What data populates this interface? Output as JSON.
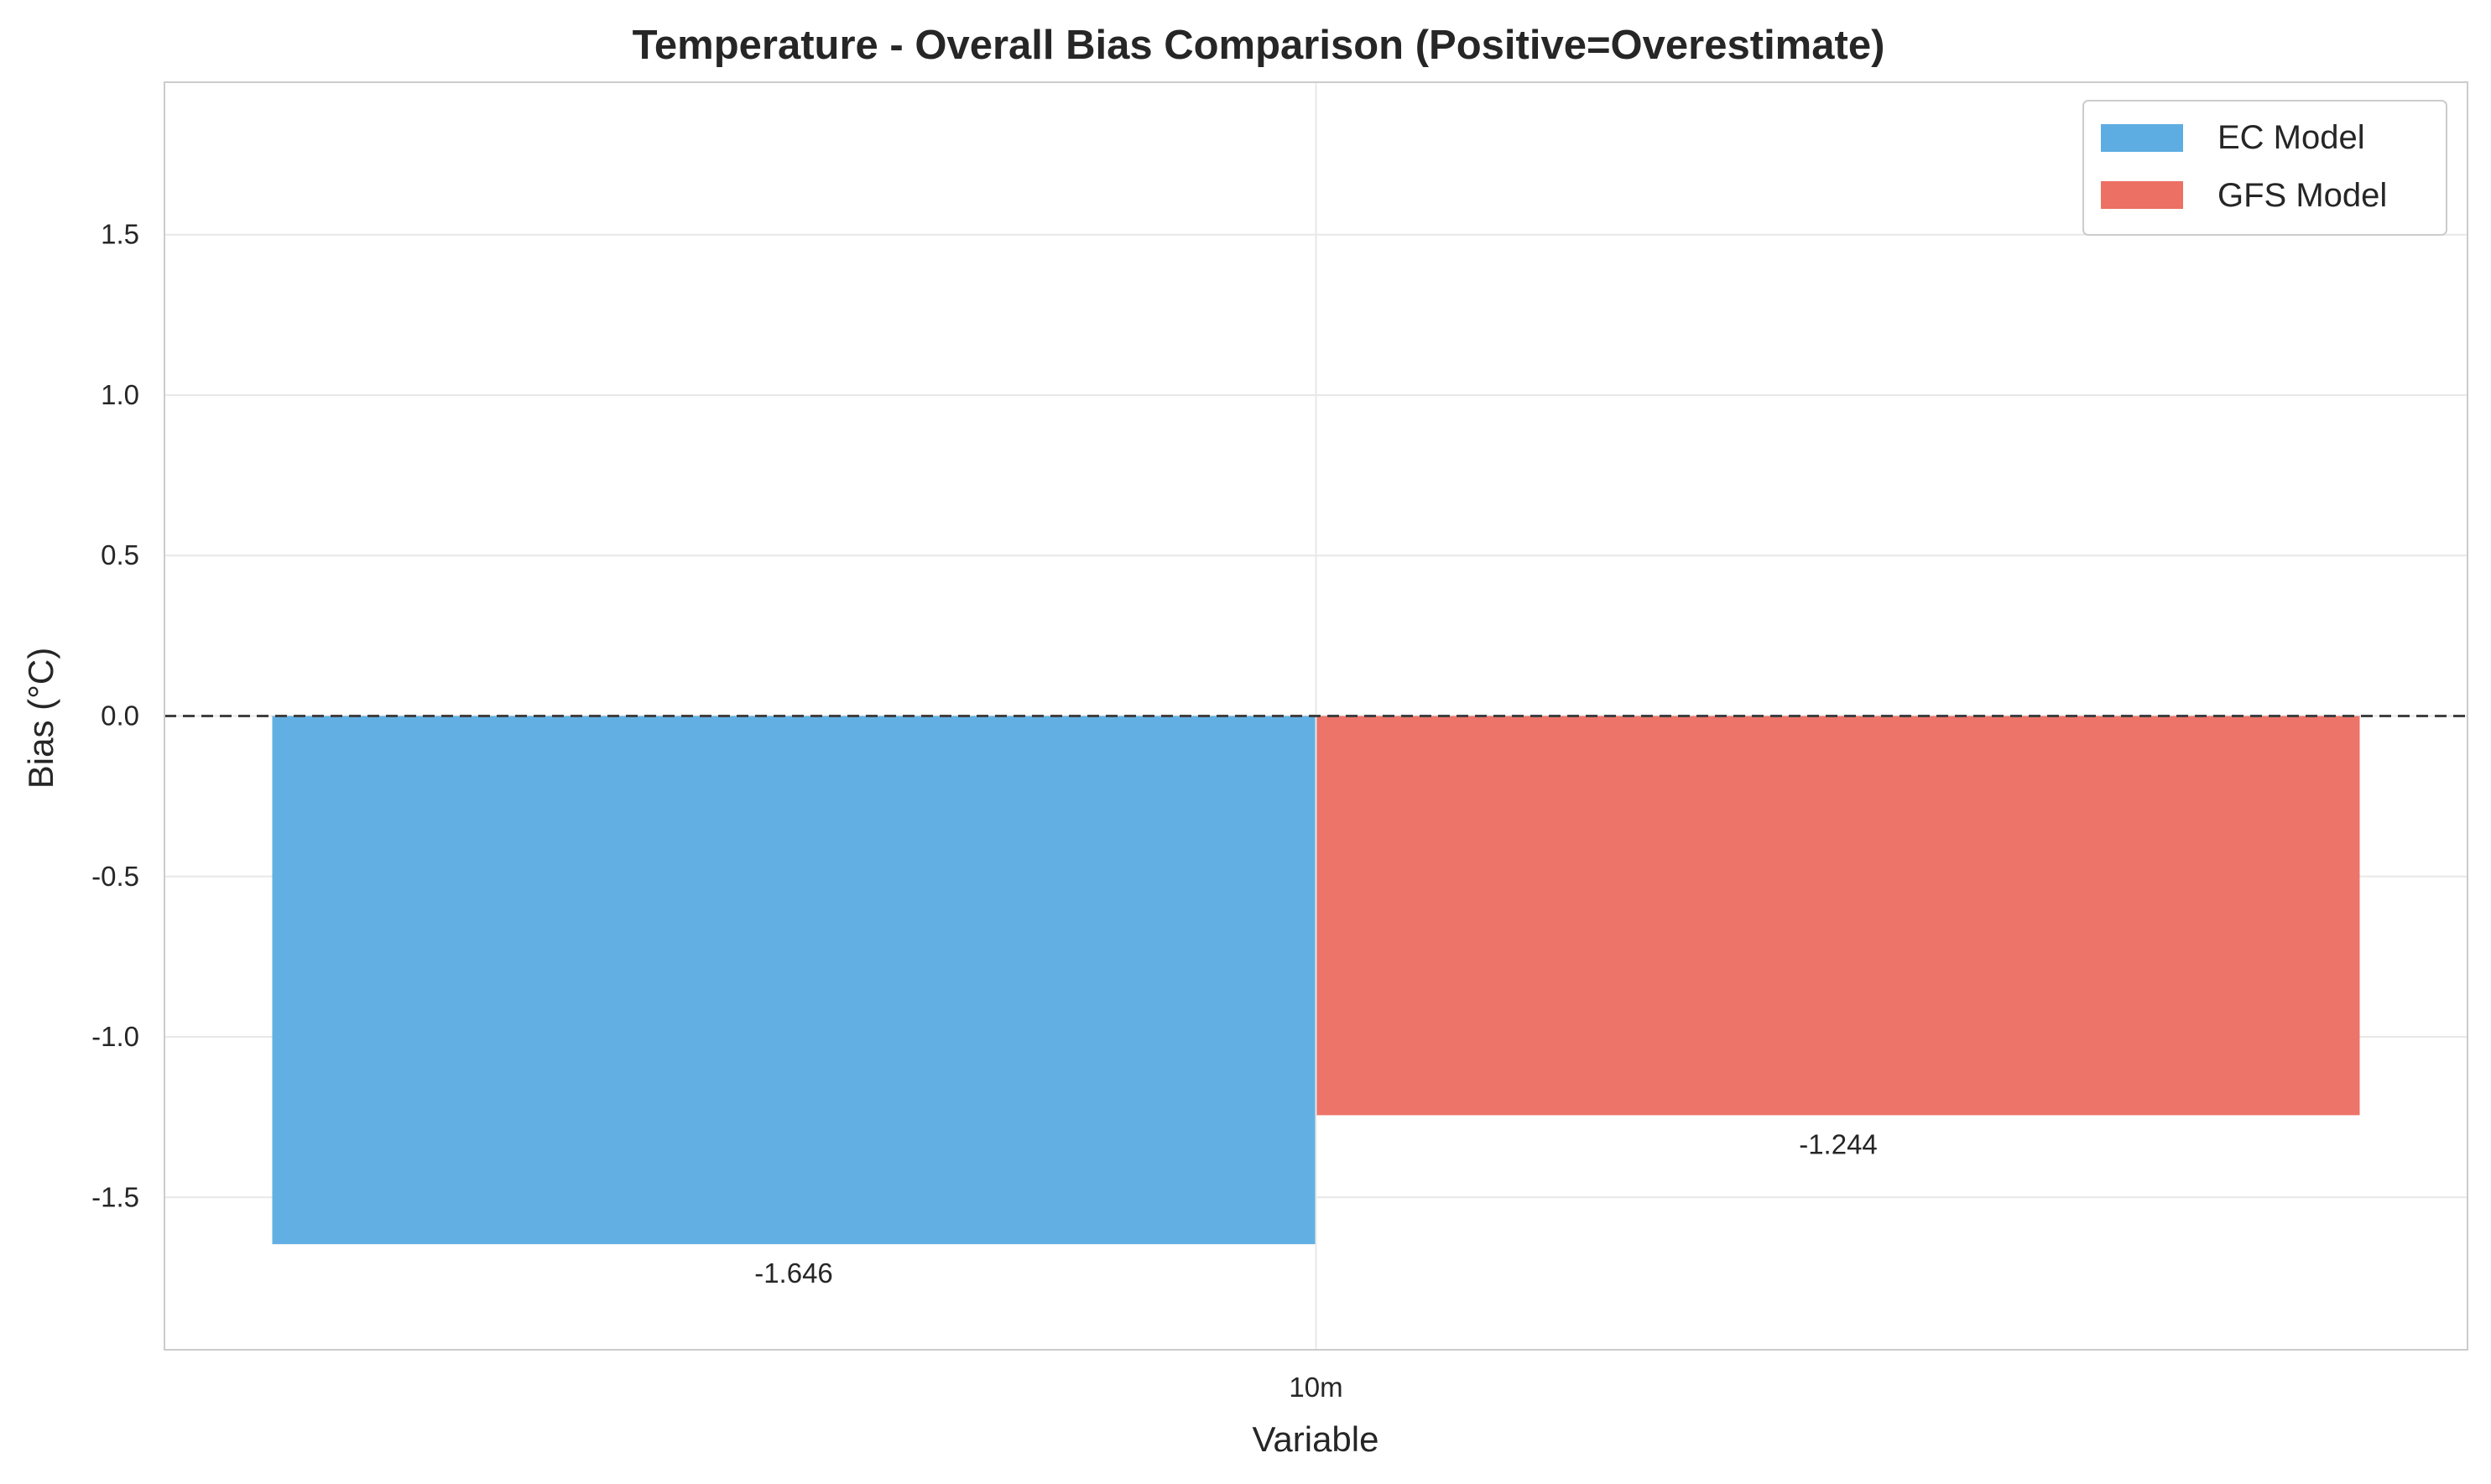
{
  "chart_data": {
    "type": "bar",
    "title": "Temperature - Overall Bias Comparison (Positive=Overestimate)",
    "xlabel": "Variable",
    "ylabel": "Bias (°C)",
    "categories": [
      "10m"
    ],
    "series": [
      {
        "name": "EC Model",
        "values": [
          -1.646
        ],
        "color": "#5DADE2",
        "value_labels": [
          "-1.646"
        ]
      },
      {
        "name": "GFS Model",
        "values": [
          -1.244
        ],
        "color": "#EC7063",
        "value_labels": [
          "-1.244"
        ]
      }
    ],
    "ylim": [
      -1.975,
      1.975
    ],
    "yticks": [
      -1.5,
      -1.0,
      -0.5,
      0.0,
      0.5,
      1.0,
      1.5
    ],
    "ytick_labels": [
      "-1.5",
      "-1.0",
      "-0.5",
      "0.0",
      "0.5",
      "1.0",
      "1.5"
    ],
    "zero_reference_line": {
      "value": 0,
      "style": "dashed",
      "color": "#404040"
    },
    "grid": true,
    "legend_position": "top-right"
  }
}
